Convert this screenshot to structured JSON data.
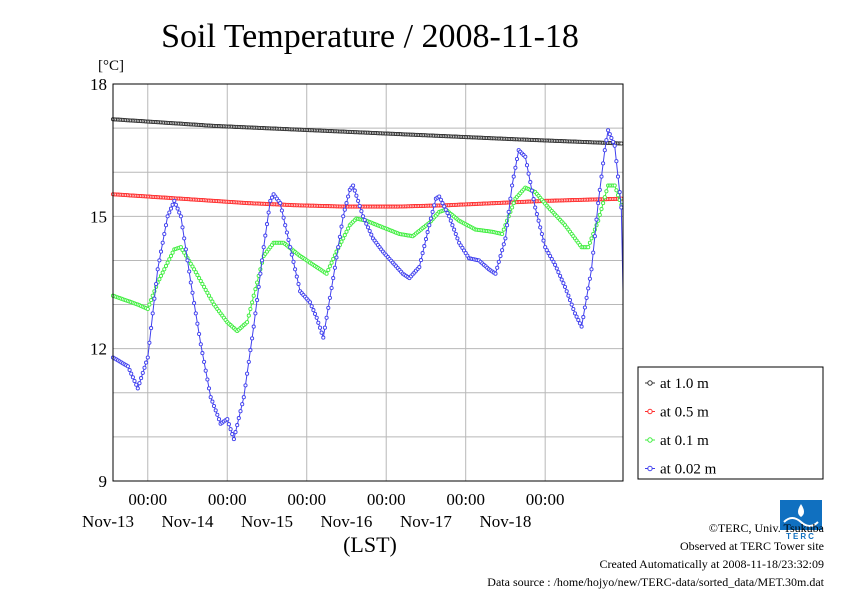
{
  "chart_data": {
    "type": "line",
    "title": "Soil Temperature / 2008-11-18",
    "ylabel": "[°C]",
    "xlabel": "(LST)",
    "ylim": [
      9,
      18
    ],
    "yticks": [
      "18",
      "15",
      "12",
      "9"
    ],
    "x_unit": "hours from Nov-13 00:00 LST",
    "xlim": [
      -10.5,
      143.5
    ],
    "xticks": [
      {
        "time": "00:00",
        "date": "Nov-13"
      },
      {
        "time": "00:00",
        "date": "Nov-14"
      },
      {
        "time": "00:00",
        "date": "Nov-15"
      },
      {
        "time": "00:00",
        "date": "Nov-16"
      },
      {
        "time": "00:00",
        "date": "Nov-17"
      },
      {
        "time": "00:00",
        "date": "Nov-18"
      }
    ],
    "grid": true,
    "legend_position": "right",
    "series": [
      {
        "name": "at 1.0 m",
        "color": "#333333",
        "points": [
          [
            -10.5,
            17.2
          ],
          [
            20,
            17.05
          ],
          [
            50,
            16.95
          ],
          [
            80,
            16.85
          ],
          [
            110,
            16.75
          ],
          [
            143.5,
            16.65
          ]
        ]
      },
      {
        "name": "at 0.5 m",
        "color": "#ff3030",
        "points": [
          [
            -10.5,
            15.5
          ],
          [
            10,
            15.4
          ],
          [
            30,
            15.3
          ],
          [
            45,
            15.25
          ],
          [
            60,
            15.22
          ],
          [
            75,
            15.22
          ],
          [
            90,
            15.25
          ],
          [
            105,
            15.3
          ],
          [
            120,
            15.35
          ],
          [
            143.5,
            15.4
          ]
        ]
      },
      {
        "name": "at 0.1 m",
        "color": "#40ee40",
        "points": [
          [
            -10.5,
            13.2
          ],
          [
            -3,
            13.0
          ],
          [
            0,
            12.9
          ],
          [
            3,
            13.5
          ],
          [
            8,
            14.25
          ],
          [
            10,
            14.3
          ],
          [
            14,
            13.8
          ],
          [
            20,
            13.0
          ],
          [
            24,
            12.6
          ],
          [
            27,
            12.4
          ],
          [
            30,
            12.6
          ],
          [
            35,
            14.1
          ],
          [
            38,
            14.4
          ],
          [
            41,
            14.4
          ],
          [
            46,
            14.1
          ],
          [
            52,
            13.8
          ],
          [
            54,
            13.7
          ],
          [
            57,
            14.2
          ],
          [
            61,
            14.8
          ],
          [
            63,
            14.95
          ],
          [
            66,
            14.9
          ],
          [
            71,
            14.75
          ],
          [
            76,
            14.6
          ],
          [
            80,
            14.55
          ],
          [
            85,
            14.85
          ],
          [
            88,
            15.1
          ],
          [
            90,
            15.15
          ],
          [
            94,
            14.9
          ],
          [
            99,
            14.7
          ],
          [
            104,
            14.65
          ],
          [
            107,
            14.6
          ],
          [
            111,
            15.4
          ],
          [
            114,
            15.65
          ],
          [
            117,
            15.55
          ],
          [
            121,
            15.2
          ],
          [
            126,
            14.8
          ],
          [
            131,
            14.3
          ],
          [
            133,
            14.3
          ],
          [
            136,
            14.9
          ],
          [
            139,
            15.7
          ],
          [
            141,
            15.7
          ],
          [
            143.5,
            15.15
          ]
        ]
      },
      {
        "name": "at 0.02 m",
        "color": "#4040ee",
        "points": [
          [
            -10.5,
            11.8
          ],
          [
            -6,
            11.6
          ],
          [
            -3,
            11.1
          ],
          [
            0,
            11.8
          ],
          [
            3,
            13.8
          ],
          [
            6,
            15.0
          ],
          [
            8,
            15.35
          ],
          [
            10,
            15.0
          ],
          [
            13,
            13.5
          ],
          [
            16,
            12.1
          ],
          [
            19,
            10.9
          ],
          [
            22,
            10.3
          ],
          [
            24,
            10.4
          ],
          [
            26,
            9.95
          ],
          [
            29,
            10.9
          ],
          [
            32,
            12.5
          ],
          [
            35,
            14.3
          ],
          [
            37,
            15.35
          ],
          [
            38,
            15.5
          ],
          [
            40,
            15.3
          ],
          [
            43,
            14.3
          ],
          [
            46,
            13.3
          ],
          [
            49,
            13.05
          ],
          [
            51,
            12.7
          ],
          [
            53,
            12.25
          ],
          [
            56,
            13.6
          ],
          [
            59,
            15.0
          ],
          [
            61,
            15.6
          ],
          [
            62,
            15.7
          ],
          [
            65,
            15.0
          ],
          [
            68,
            14.5
          ],
          [
            71,
            14.2
          ],
          [
            74,
            13.95
          ],
          [
            77,
            13.7
          ],
          [
            79,
            13.6
          ],
          [
            82,
            13.85
          ],
          [
            85,
            14.8
          ],
          [
            87,
            15.4
          ],
          [
            88,
            15.45
          ],
          [
            91,
            15.0
          ],
          [
            94,
            14.4
          ],
          [
            97,
            14.05
          ],
          [
            100,
            14.0
          ],
          [
            103,
            13.8
          ],
          [
            105,
            13.7
          ],
          [
            108,
            14.5
          ],
          [
            110,
            15.7
          ],
          [
            112,
            16.5
          ],
          [
            114,
            16.35
          ],
          [
            117,
            15.2
          ],
          [
            120,
            14.3
          ],
          [
            123,
            13.9
          ],
          [
            126,
            13.4
          ],
          [
            129,
            12.8
          ],
          [
            131,
            12.5
          ],
          [
            134,
            13.8
          ],
          [
            136,
            15.3
          ],
          [
            138,
            16.5
          ],
          [
            139,
            16.95
          ],
          [
            141,
            16.6
          ],
          [
            143,
            15.2
          ],
          [
            143.5,
            13.3
          ]
        ]
      }
    ],
    "legend": [
      "at 1.0 m",
      "at 0.5 m",
      "at 0.1 m",
      "at 0.02 m"
    ]
  },
  "footer": {
    "copyright": "©TERC, Univ. Tsukuba",
    "observed": "Observed at TERC Tower site",
    "created": "Created Automatically at 2008-11-18/23:32:09",
    "source": "Data source : /home/hojyo/new/TERC-data/sorted_data/MET.30m.dat"
  },
  "logo": {
    "text": "TERC",
    "icon": "terc-logo-icon",
    "color": "#1070c0"
  }
}
